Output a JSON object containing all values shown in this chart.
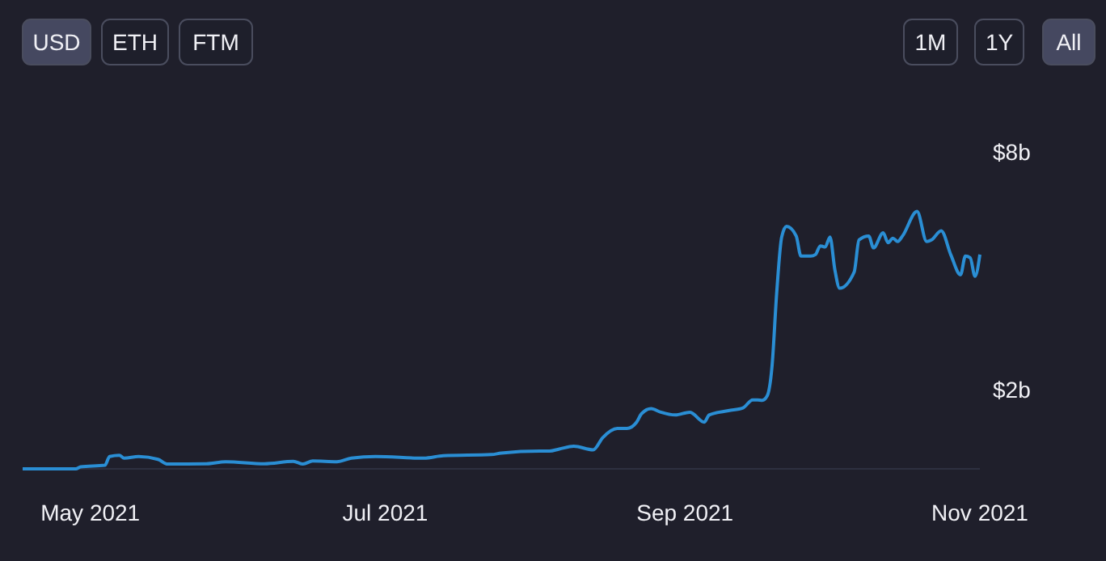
{
  "chart_data": {
    "type": "line",
    "color": "#2a8ed4",
    "x": [
      "2021-04-17",
      "2021-04-28",
      "2021-04-29",
      "2021-05-04",
      "2021-05-05",
      "2021-05-07",
      "2021-05-08",
      "2021-05-11",
      "2021-05-15",
      "2021-05-17",
      "2021-05-25",
      "2021-05-29",
      "2021-06-06",
      "2021-06-12",
      "2021-06-14",
      "2021-06-16",
      "2021-06-21",
      "2021-06-24",
      "2021-06-29",
      "2021-07-09",
      "2021-07-13",
      "2021-07-23",
      "2021-07-25",
      "2021-08-02",
      "2021-08-04",
      "2021-08-06",
      "2021-08-09",
      "2021-08-13",
      "2021-08-15",
      "2021-08-18",
      "2021-08-20",
      "2021-08-22",
      "2021-08-23",
      "2021-08-25",
      "2021-08-27",
      "2021-08-30",
      "2021-09-02",
      "2021-09-05",
      "2021-09-06",
      "2021-09-10",
      "2021-09-13",
      "2021-09-15",
      "2021-09-16",
      "2021-09-17",
      "2021-09-18",
      "2021-09-19",
      "2021-09-20",
      "2021-09-21",
      "2021-09-22",
      "2021-09-24",
      "2021-09-25",
      "2021-09-27",
      "2021-09-28",
      "2021-09-29",
      "2021-09-30",
      "2021-10-01",
      "2021-10-02",
      "2021-10-03",
      "2021-10-06",
      "2021-10-07",
      "2021-10-09",
      "2021-10-10",
      "2021-10-12",
      "2021-10-13",
      "2021-10-14",
      "2021-10-15",
      "2021-10-16",
      "2021-10-19",
      "2021-10-21",
      "2021-10-22",
      "2021-10-24",
      "2021-10-26",
      "2021-10-28",
      "2021-10-29",
      "2021-10-30",
      "2021-10-31",
      "2021-11-01"
    ],
    "values": [
      0.0,
      0.0,
      0.05,
      0.09,
      0.31,
      0.34,
      0.27,
      0.31,
      0.24,
      0.12,
      0.13,
      0.18,
      0.13,
      0.19,
      0.12,
      0.2,
      0.18,
      0.27,
      0.31,
      0.27,
      0.33,
      0.36,
      0.4,
      0.45,
      0.45,
      0.5,
      0.57,
      0.48,
      0.79,
      1.02,
      1.02,
      1.18,
      1.39,
      1.52,
      1.43,
      1.36,
      1.43,
      1.18,
      1.36,
      1.47,
      1.54,
      1.74,
      1.74,
      1.73,
      1.84,
      2.58,
      4.49,
      5.85,
      6.12,
      5.88,
      5.37,
      5.37,
      5.41,
      5.63,
      5.6,
      5.85,
      5.03,
      4.56,
      4.97,
      5.78,
      5.88,
      5.58,
      5.96,
      5.71,
      5.82,
      5.74,
      5.88,
      6.5,
      5.74,
      5.78,
      6.01,
      5.4,
      4.9,
      5.37,
      5.33,
      4.86,
      5.41
    ],
    "xlim": [
      "2021-04-17",
      "2021-11-01"
    ],
    "ylim": [
      0,
      8
    ],
    "xticks": [
      {
        "value": "2021-05-01",
        "label": "May 2021"
      },
      {
        "value": "2021-07-01",
        "label": "Jul 2021"
      },
      {
        "value": "2021-09-01",
        "label": "Sep 2021"
      },
      {
        "value": "2021-11-01",
        "label": "Nov 2021"
      }
    ],
    "yticks": [
      {
        "value": 2,
        "label": "$2b"
      },
      {
        "value": 8,
        "label": "$8b"
      }
    ],
    "grid": false,
    "annotations": [
      "USD",
      "ETH",
      "FTM",
      "1M",
      "1Y",
      "All"
    ]
  }
}
